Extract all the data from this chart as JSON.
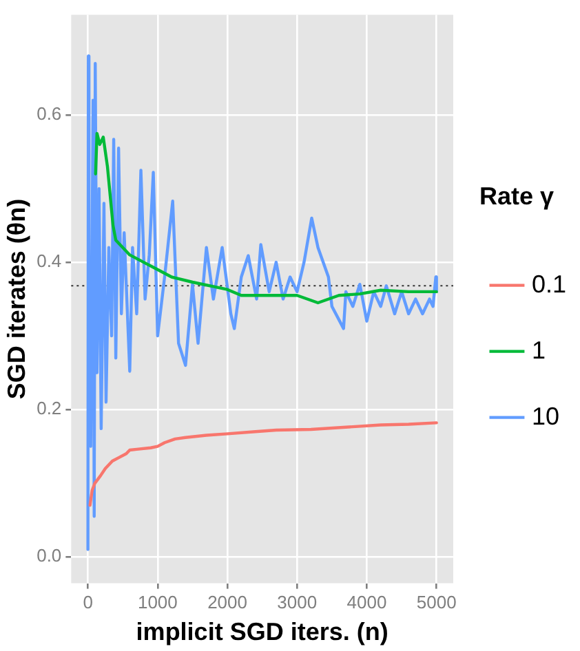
{
  "chart_data": {
    "type": "line",
    "xlabel": "implicit SGD iters. (n)",
    "ylabel": "SGD iterates (θn)",
    "legend_title": "Rate γ",
    "legend": "right",
    "grid": true,
    "marker": "none",
    "line_style": "solid",
    "xlim": [
      -240,
      5240
    ],
    "ylim": [
      -0.036,
      0.736
    ],
    "xticks": [
      0,
      1000,
      2000,
      3000,
      4000,
      5000
    ],
    "yticks": [
      {
        "value": 0,
        "label": "0.0"
      },
      0.2,
      0.4,
      0.6
    ],
    "ref_lines": [
      {
        "axis": "y",
        "value": 0.368,
        "line_style": "dotted",
        "color": "#333333"
      }
    ],
    "series": [
      {
        "name": "0.1",
        "color": "#f8766d",
        "x": [
          30,
          60,
          100,
          180,
          250,
          350,
          450,
          550,
          600,
          700,
          900,
          1000,
          1100,
          1250,
          1400,
          1700,
          2000,
          2400,
          2700,
          3200,
          3700,
          4200,
          4600,
          5000
        ],
        "values": [
          0.07,
          0.09,
          0.1,
          0.11,
          0.12,
          0.13,
          0.135,
          0.14,
          0.145,
          0.146,
          0.148,
          0.15,
          0.155,
          0.16,
          0.162,
          0.165,
          0.167,
          0.17,
          0.172,
          0.173,
          0.176,
          0.179,
          0.18,
          0.182
        ]
      },
      {
        "name": "1",
        "color": "#00ba38",
        "x": [
          110,
          130,
          170,
          220,
          250,
          280,
          320,
          360,
          400,
          500,
          600,
          800,
          1000,
          1200,
          1500,
          1800,
          2000,
          2200,
          2600,
          3000,
          3300,
          3600,
          3900,
          4200,
          4600,
          5000
        ],
        "values": [
          0.52,
          0.575,
          0.56,
          0.57,
          0.55,
          0.53,
          0.49,
          0.45,
          0.43,
          0.42,
          0.41,
          0.4,
          0.39,
          0.38,
          0.373,
          0.367,
          0.363,
          0.355,
          0.355,
          0.355,
          0.345,
          0.355,
          0.357,
          0.362,
          0.36,
          0.36
        ]
      },
      {
        "name": "10",
        "color": "#619cff",
        "x": [
          0,
          6,
          15,
          40,
          74,
          90,
          105,
          130,
          160,
          190,
          230,
          260,
          300,
          340,
          370,
          400,
          440,
          480,
          520,
          600,
          640,
          700,
          760,
          820,
          880,
          938,
          1000,
          1100,
          1216,
          1300,
          1400,
          1500,
          1580,
          1700,
          1800,
          1926,
          2050,
          2100,
          2200,
          2300,
          2420,
          2480,
          2600,
          2700,
          2800,
          2900,
          3000,
          3100,
          3210,
          3300,
          3450,
          3500,
          3667,
          3700,
          3800,
          3900,
          4000,
          4100,
          4200,
          4280,
          4400,
          4500,
          4600,
          4700,
          4800,
          4900,
          4950,
          4990,
          5000
        ],
        "values": [
          0.01,
          0.68,
          0.16,
          0.15,
          0.62,
          0.055,
          0.67,
          0.25,
          0.5,
          0.174,
          0.48,
          0.21,
          0.42,
          0.3,
          0.567,
          0.27,
          0.555,
          0.33,
          0.44,
          0.252,
          0.42,
          0.33,
          0.525,
          0.35,
          0.41,
          0.522,
          0.3,
          0.38,
          0.483,
          0.29,
          0.26,
          0.37,
          0.29,
          0.42,
          0.35,
          0.42,
          0.33,
          0.31,
          0.38,
          0.409,
          0.35,
          0.424,
          0.36,
          0.4,
          0.35,
          0.38,
          0.36,
          0.4,
          0.46,
          0.42,
          0.38,
          0.34,
          0.31,
          0.36,
          0.34,
          0.37,
          0.32,
          0.36,
          0.34,
          0.368,
          0.33,
          0.36,
          0.33,
          0.35,
          0.33,
          0.35,
          0.34,
          0.38,
          0.36
        ]
      }
    ]
  }
}
